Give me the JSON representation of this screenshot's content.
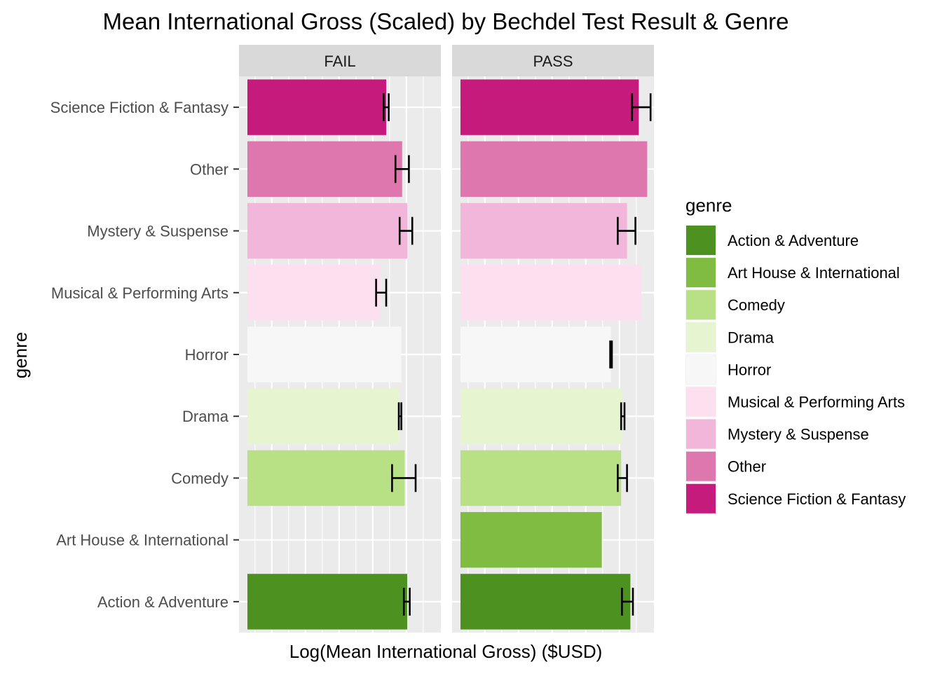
{
  "chart_data": {
    "type": "bar",
    "orientation": "horizontal",
    "title": "Mean International Gross (Scaled) by Bechdel Test Result & Genre",
    "xlabel": "Log(Mean International Gross) ($USD)",
    "ylabel": "genre",
    "x_tick_labels_shown": false,
    "facets": [
      "FAIL",
      "PASS"
    ],
    "categories": [
      "Action & Adventure",
      "Art House & International",
      "Comedy",
      "Drama",
      "Horror",
      "Musical & Performing Arts",
      "Mystery & Suspense",
      "Other",
      "Science Fiction & Fantasy"
    ],
    "colors": {
      "Action & Adventure": "#4d9221",
      "Art House & International": "#7fbc41",
      "Comedy": "#b8e186",
      "Drama": "#e6f5d0",
      "Horror": "#f7f7f7",
      "Musical & Performing Arts": "#fde0ef",
      "Mystery & Suspense": "#f1b6da",
      "Other": "#de77ae",
      "Science Fiction & Fantasy": "#c51b7d"
    },
    "series": [
      {
        "name": "FAIL",
        "values": [
          17.21,
          null,
          17.18,
          17.12,
          17.14,
          16.89,
          17.21,
          17.15,
          16.96
        ],
        "error_low": [
          17.17,
          null,
          17.03,
          17.11,
          null,
          16.84,
          17.12,
          17.07,
          16.93
        ],
        "error_high": [
          17.24,
          null,
          17.31,
          17.14,
          null,
          16.96,
          17.27,
          17.23,
          16.99
        ]
      },
      {
        "name": "PASS",
        "values": [
          17.33,
          16.99,
          17.22,
          17.23,
          17.1,
          17.46,
          17.29,
          17.53,
          17.43
        ],
        "error_low": [
          17.23,
          null,
          17.18,
          17.22,
          17.09,
          null,
          17.18,
          null,
          17.35
        ],
        "error_high": [
          17.36,
          null,
          17.29,
          17.26,
          17.11,
          null,
          17.39,
          null,
          17.57
        ]
      }
    ],
    "xlim": [
      15.21,
      17.61
    ],
    "grid": true,
    "legend": {
      "title": "genre",
      "position": "right",
      "entries": [
        "Action & Adventure",
        "Art House & International",
        "Comedy",
        "Drama",
        "Horror",
        "Musical & Performing Arts",
        "Mystery & Suspense",
        "Other",
        "Science Fiction & Fantasy"
      ]
    }
  }
}
